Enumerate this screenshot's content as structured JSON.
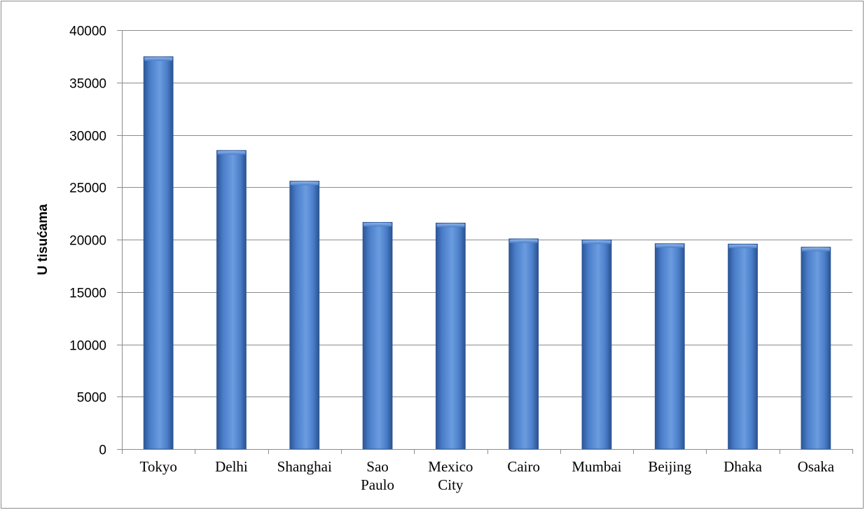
{
  "chart_data": {
    "type": "bar",
    "title": "",
    "xlabel": "",
    "ylabel": "U tisućama",
    "categories": [
      "Tokyo",
      "Delhi",
      "Shanghai",
      "Sao Paulo",
      "Mexico City",
      "Cairo",
      "Mumbai",
      "Beijing",
      "Dhaka",
      "Osaka"
    ],
    "category_lines": [
      [
        "Tokyo"
      ],
      [
        "Delhi"
      ],
      [
        "Shanghai"
      ],
      [
        "Sao",
        "Paulo"
      ],
      [
        "Mexico",
        "City"
      ],
      [
        "Cairo"
      ],
      [
        "Mumbai"
      ],
      [
        "Beijing"
      ],
      [
        "Dhaka"
      ],
      [
        "Osaka"
      ]
    ],
    "values": [
      37468,
      28514,
      25582,
      21650,
      21581,
      20076,
      19980,
      19618,
      19578,
      19281
    ],
    "ylim": [
      0,
      40000
    ],
    "yticks": [
      0,
      5000,
      10000,
      15000,
      20000,
      25000,
      30000,
      35000,
      40000
    ],
    "grid": true,
    "legend": "none",
    "bar_color": "#4a7ec9"
  }
}
